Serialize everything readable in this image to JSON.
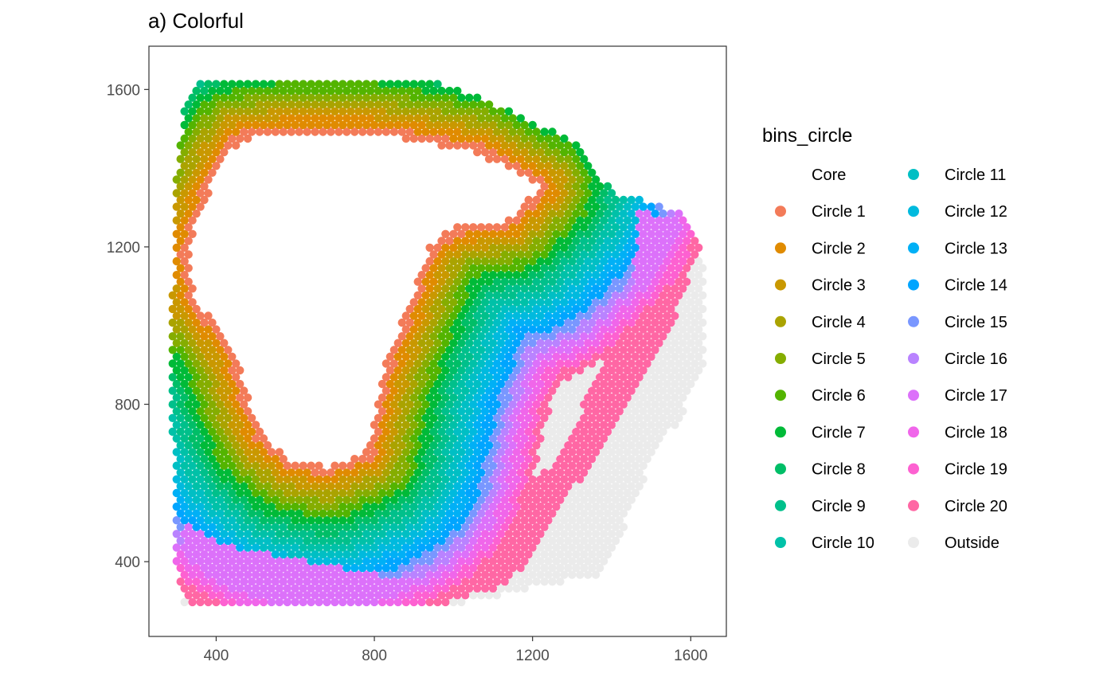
{
  "chart_data": {
    "type": "scatter",
    "title": "a) Colorful",
    "xlabel": "",
    "ylabel": "",
    "xlim": [
      230,
      1690
    ],
    "ylim": [
      210,
      1710
    ],
    "x_ticks": [
      400,
      800,
      1200,
      1600
    ],
    "y_ticks": [
      400,
      800,
      1200,
      1600
    ],
    "grid": false,
    "legend": {
      "title": "bins_circle",
      "placement": "right",
      "columns": 2,
      "entries": [
        {
          "label": "Core",
          "color": "#ffffff"
        },
        {
          "label": "Circle 1",
          "color": "#F37B59"
        },
        {
          "label": "Circle 2",
          "color": "#E08B00"
        },
        {
          "label": "Circle 3",
          "color": "#C99800"
        },
        {
          "label": "Circle 4",
          "color": "#AAA300"
        },
        {
          "label": "Circle 5",
          "color": "#85AD00"
        },
        {
          "label": "Circle 6",
          "color": "#53B400"
        },
        {
          "label": "Circle 7",
          "color": "#00BA38"
        },
        {
          "label": "Circle 8",
          "color": "#00BE67"
        },
        {
          "label": "Circle 9",
          "color": "#00C08B"
        },
        {
          "label": "Circle 10",
          "color": "#00C1A8"
        },
        {
          "label": "Circle 11",
          "color": "#00BFC4"
        },
        {
          "label": "Circle 12",
          "color": "#00BADE"
        },
        {
          "label": "Circle 13",
          "color": "#00B0F6"
        },
        {
          "label": "Circle 14",
          "color": "#00A5FF"
        },
        {
          "label": "Circle 15",
          "color": "#7997FF"
        },
        {
          "label": "Circle 16",
          "color": "#B983FF"
        },
        {
          "label": "Circle 17",
          "color": "#DC71FA"
        },
        {
          "label": "Circle 18",
          "color": "#F066EA"
        },
        {
          "label": "Circle 19",
          "color": "#FD61D1"
        },
        {
          "label": "Circle 20",
          "color": "#FF67A4"
        },
        {
          "label": "Outside",
          "color": "#EBEBEB"
        }
      ]
    },
    "spot_spacing": 20,
    "tissue_outline": [
      [
        360,
        1625
      ],
      [
        690,
        1625
      ],
      [
        960,
        1620
      ],
      [
        1000,
        1605
      ],
      [
        1180,
        1530
      ],
      [
        1320,
        1455
      ],
      [
        1400,
        1340
      ],
      [
        1500,
        1315
      ],
      [
        1580,
        1285
      ],
      [
        1620,
        1230
      ],
      [
        1640,
        1070
      ],
      [
        1630,
        900
      ],
      [
        1580,
        780
      ],
      [
        1500,
        650
      ],
      [
        1440,
        510
      ],
      [
        1380,
        370
      ],
      [
        1000,
        290
      ],
      [
        320,
        288
      ],
      [
        300,
        380
      ],
      [
        290,
        700
      ],
      [
        290,
        1100
      ],
      [
        300,
        1380
      ],
      [
        320,
        1560
      ]
    ],
    "core_outline": [
      [
        460,
        1470
      ],
      [
        560,
        1485
      ],
      [
        780,
        1488
      ],
      [
        900,
        1470
      ],
      [
        1060,
        1440
      ],
      [
        1220,
        1350
      ],
      [
        1140,
        1270
      ],
      [
        1000,
        1250
      ],
      [
        940,
        1200
      ],
      [
        880,
        1040
      ],
      [
        820,
        880
      ],
      [
        780,
        680
      ],
      [
        680,
        640
      ],
      [
        590,
        660
      ],
      [
        520,
        720
      ],
      [
        480,
        820
      ],
      [
        450,
        920
      ],
      [
        420,
        980
      ],
      [
        350,
        1060
      ],
      [
        330,
        1190
      ],
      [
        370,
        1310
      ],
      [
        420,
        1420
      ]
    ],
    "pink_band_outline": [
      [
        1470,
        1290
      ],
      [
        1570,
        1270
      ],
      [
        1610,
        1160
      ],
      [
        1550,
        990
      ],
      [
        1480,
        870
      ],
      [
        1380,
        700
      ],
      [
        1250,
        500
      ],
      [
        1140,
        340
      ],
      [
        980,
        295
      ],
      [
        330,
        290
      ],
      [
        300,
        380
      ],
      [
        320,
        500
      ],
      [
        420,
        440
      ],
      [
        900,
        350
      ],
      [
        1020,
        380
      ],
      [
        1120,
        480
      ],
      [
        1240,
        640
      ],
      [
        1330,
        800
      ],
      [
        1400,
        960
      ],
      [
        1450,
        1100
      ]
    ],
    "bin_count": 20
  }
}
